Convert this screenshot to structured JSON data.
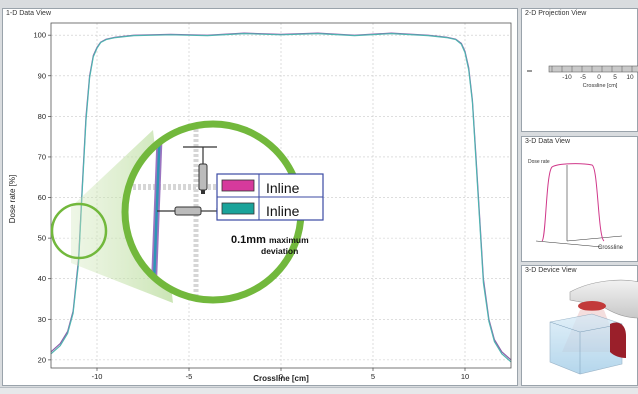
{
  "panels": {
    "data_view_1d": "1-D Data View",
    "projection_view_2d": "2-D Projection View",
    "data_view_3d": "3-D Data View",
    "device_view_3d": "3-D Device View"
  },
  "projection": {
    "tick_labels": [
      "-10",
      "-5",
      "0",
      "5",
      "10"
    ],
    "xlabel": "Crossline [cm]"
  },
  "view_3d": {
    "axis_label_z": "Dose rate",
    "axis_label_x": "Crossline"
  },
  "inset": {
    "legend": [
      {
        "label": "Inline",
        "color": "#d63a9c"
      },
      {
        "label": "Inline",
        "color": "#1aa39a"
      }
    ],
    "note_value": "0.1mm",
    "note_text_1": "maximum",
    "note_text_2": "deviation",
    "ring_color": "#6db83a"
  },
  "chart_data": {
    "type": "line",
    "title": "",
    "xlabel": "Crossline [cm]",
    "ylabel": "Dose rate [%]",
    "xlim": [
      -12.5,
      12.5
    ],
    "ylim": [
      18,
      103
    ],
    "xticks": [
      -10,
      -5,
      0,
      5,
      10
    ],
    "yticks": [
      20,
      30,
      40,
      50,
      60,
      70,
      80,
      90,
      100
    ],
    "grid": true,
    "series": [
      {
        "color": "#8a5fa8",
        "x": [
          -12.5,
          -12.0,
          -11.6,
          -11.3,
          -11.0,
          -10.8,
          -10.6,
          -10.4,
          -10.2,
          -10.0,
          -9.8,
          -9.5,
          -9.0,
          -8.0,
          -6.0,
          -4.0,
          -2.0,
          0.0,
          2.0,
          4.0,
          6.0,
          8.0,
          9.0,
          9.5,
          9.8,
          10.0,
          10.2,
          10.4,
          10.6,
          10.8,
          11.0,
          11.3,
          11.6,
          12.0,
          12.5
        ],
        "y": [
          22,
          24,
          27,
          32,
          45,
          63,
          80,
          90,
          95,
          97,
          98.3,
          99,
          99.5,
          100,
          100.2,
          100,
          100.5,
          100.2,
          100.5,
          100,
          100.5,
          100,
          99.5,
          99,
          98,
          96,
          92,
          84,
          70,
          55,
          40,
          30,
          25,
          22,
          20
        ]
      },
      {
        "color": "#4fb3b0",
        "x": [
          -12.5,
          -12.0,
          -11.6,
          -11.3,
          -11.0,
          -10.8,
          -10.6,
          -10.4,
          -10.2,
          -10.0,
          -9.8,
          -9.5,
          -9.0,
          -8.0,
          -6.0,
          -4.0,
          -2.0,
          0.0,
          2.0,
          4.0,
          6.0,
          8.0,
          9.0,
          9.5,
          9.8,
          10.0,
          10.2,
          10.4,
          10.6,
          10.8,
          11.0,
          11.3,
          11.6,
          12.0,
          12.5
        ],
        "y": [
          21.5,
          23.5,
          26.5,
          31.5,
          44,
          62,
          79,
          89.5,
          94.7,
          96.8,
          98.2,
          98.9,
          99.4,
          99.9,
          100.1,
          99.9,
          100.4,
          100.1,
          100.4,
          99.9,
          100.4,
          99.9,
          99.4,
          98.9,
          97.8,
          95.7,
          91.5,
          83.5,
          69,
          54,
          39,
          29.5,
          24.5,
          21.5,
          19.5
        ]
      }
    ]
  }
}
